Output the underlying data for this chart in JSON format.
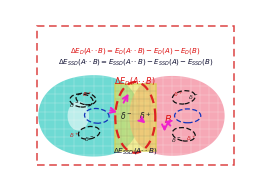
{
  "bg_color": "#ffffff",
  "border_color": "#dd4444",
  "cyan_color": "#55d4cc",
  "pink_color": "#f599aa",
  "cyan_alpha": 0.85,
  "pink_alpha": 0.85,
  "yellow_color": "#e8e050",
  "yellow_alpha": 0.6,
  "red_dash_color": "#dd2222",
  "arrow_color": "#ee22cc",
  "black_orbital": "#111111",
  "blue_orbital": "#1133bb",
  "delta_dark": "#222222",
  "delta_red": "#cc2222",
  "ed_color": "#dd1111",
  "essd_color": "#111133",
  "B_color": "#dd1111",
  "eq1_color": "#dd1111",
  "eq2_color": "#111133",
  "white_spot": "#ffffff",
  "grid_color": "#aaaaaa"
}
